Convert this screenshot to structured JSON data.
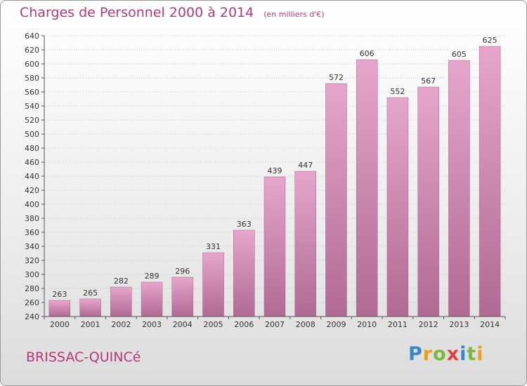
{
  "header": {
    "title": "Charges de Personnel 2000 à 2014",
    "subtitle": "(en milliers d'€)"
  },
  "footer": {
    "commune": "BRISSAC-QUINCé",
    "logo_letters": [
      "P",
      "r",
      "o",
      "x",
      "i",
      "t",
      "i"
    ],
    "logo_colors": [
      "#3a86c8",
      "#e8a020",
      "#7ab83a",
      "#e04040",
      "#3a86c8",
      "#7ab83a",
      "#e8a020"
    ]
  },
  "colors": {
    "bar": "#d98cb6",
    "title": "#b33a7a"
  },
  "chart_data": {
    "type": "bar",
    "categories": [
      "2000",
      "2001",
      "2002",
      "2003",
      "2004",
      "2005",
      "2006",
      "2007",
      "2008",
      "2009",
      "2010",
      "2011",
      "2012",
      "2013",
      "2014"
    ],
    "values": [
      263,
      265,
      282,
      289,
      296,
      331,
      363,
      439,
      447,
      572,
      606,
      552,
      567,
      605,
      625
    ],
    "title": "Charges de Personnel 2000 à 2014",
    "subtitle": "(en milliers d'€)",
    "xlabel": "",
    "ylabel": "",
    "ylim": [
      240,
      640
    ],
    "ytick_step": 20,
    "grid": true,
    "legend": "none"
  }
}
